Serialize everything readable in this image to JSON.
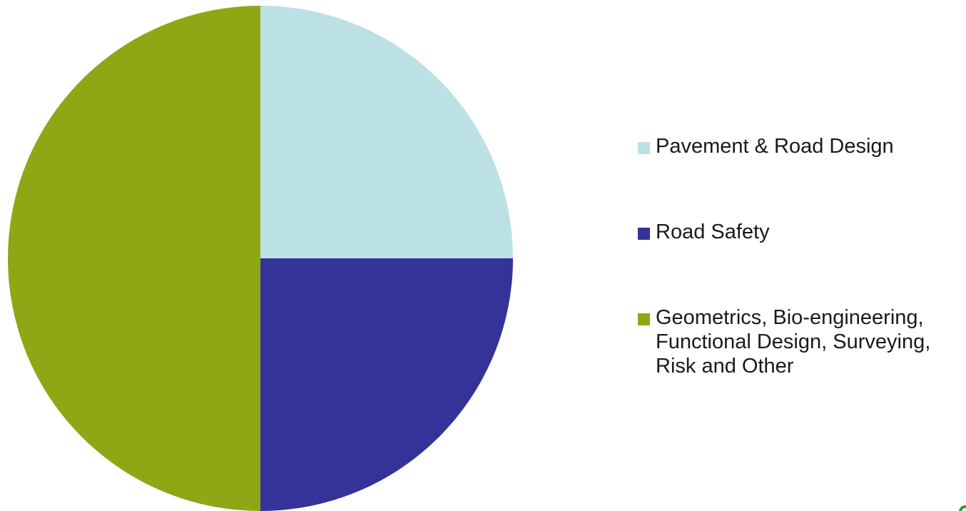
{
  "chart_data": {
    "type": "pie",
    "title": "",
    "slices": [
      {
        "label": "Pavement & Road Design",
        "value": 25,
        "color": "#bce1e4"
      },
      {
        "label": "Road Safety",
        "value": 25,
        "color": "#343399"
      },
      {
        "label": "Geometrics, Bio-engineering,\nFunctional Design, Surveying,\nRisk and Other",
        "value": 50,
        "color": "#8fa714"
      }
    ],
    "start_angle_deg": 0,
    "direction": "clockwise",
    "legend_position": "right"
  },
  "legend": {
    "items": [
      {
        "label": "Pavement & Road Design",
        "color": "#bce1e4"
      },
      {
        "label": "Road Safety",
        "color": "#343399"
      },
      {
        "label": "Geometrics, Bio-engineering,\nFunctional Design, Surveying,\nRisk and Other",
        "color": "#8fa714"
      }
    ]
  },
  "colors": {
    "corner_mark": "#2f9e3f"
  }
}
